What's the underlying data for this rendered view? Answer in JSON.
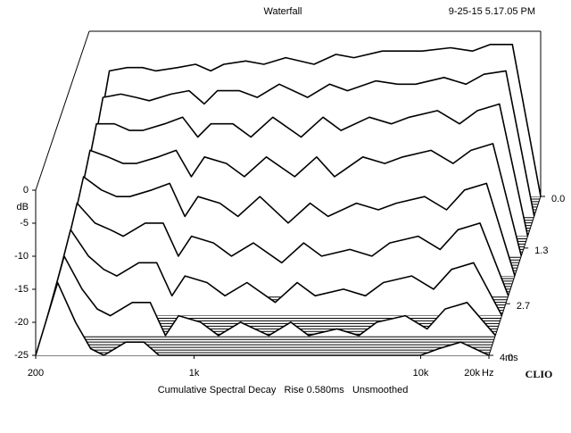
{
  "chart_data": {
    "type": "waterfall",
    "title": "Waterfall",
    "timestamp": "9-25-15 5.17.05 PM",
    "caption": "Cumulative Spectral Decay   Rise 0.580ms   Unsmoothed",
    "brand": "CLIO",
    "y_label": "dB",
    "x_unit": "Hz",
    "z_unit": "ms",
    "log_x": true,
    "x": [
      200,
      250,
      300,
      350,
      400,
      500,
      600,
      700,
      800,
      1000,
      1200,
      1500,
      2000,
      2500,
      3000,
      4000,
      5000,
      6000,
      8000,
      10000,
      12000,
      15000,
      20000
    ],
    "xlim": [
      200,
      20000
    ],
    "xticks": [
      {
        "value": 200,
        "label": "200"
      },
      {
        "value": 1000,
        "label": "1k"
      },
      {
        "value": 10000,
        "label": "10k"
      },
      {
        "value": 20000,
        "label": "20k"
      }
    ],
    "ylim": [
      -25,
      0
    ],
    "yticks": [
      0,
      -5,
      -10,
      -15,
      -20,
      -25
    ],
    "zlim": [
      0,
      4
    ],
    "zticks": [
      {
        "value": 0,
        "label": "0.0"
      },
      1.3,
      2.7,
      {
        "value": 4,
        "label": "4.0"
      }
    ],
    "color": "#000000",
    "slices": [
      {
        "time": 0,
        "values": [
          -25,
          -6,
          -5.5,
          -5.5,
          -6,
          -5.5,
          -5,
          -6,
          -5,
          -4.5,
          -5,
          -4,
          -5,
          -3.5,
          -4,
          -3,
          -3,
          -3,
          -2.5,
          -3,
          -2,
          -2,
          -25
        ]
      },
      {
        "time": 0.5,
        "values": [
          -25,
          -7,
          -6.5,
          -7,
          -7.5,
          -6.5,
          -6,
          -8,
          -6,
          -6,
          -7,
          -5,
          -7,
          -5,
          -6,
          -4.5,
          -5,
          -5,
          -4,
          -5,
          -3.5,
          -3,
          -25
        ]
      },
      {
        "time": 1,
        "values": [
          -25,
          -8,
          -8,
          -9,
          -9,
          -8,
          -7,
          -10,
          -8,
          -8,
          -10,
          -7,
          -10,
          -7,
          -9,
          -7,
          -8,
          -7,
          -6,
          -8,
          -6,
          -5,
          -25
        ]
      },
      {
        "time": 1.5,
        "values": [
          -25,
          -9,
          -10,
          -11,
          -11,
          -10,
          -9,
          -13,
          -10,
          -11,
          -13,
          -10,
          -13,
          -10,
          -13,
          -10,
          -11,
          -10,
          -9,
          -11,
          -9,
          -8,
          -25
        ]
      },
      {
        "time": 2,
        "values": [
          -25,
          -10,
          -12,
          -13,
          -13,
          -12,
          -11,
          -16,
          -13,
          -14,
          -16,
          -13,
          -17,
          -14,
          -16,
          -14,
          -15,
          -14,
          -13,
          -15,
          -12,
          -11,
          -25
        ]
      },
      {
        "time": 2.5,
        "values": [
          -25,
          -11,
          -14,
          -15,
          -16,
          -14,
          -14,
          -19,
          -16,
          -17,
          -19,
          -17,
          -20,
          -17,
          -19,
          -18,
          -19,
          -17,
          -16,
          -18,
          -15,
          -14,
          -25
        ]
      },
      {
        "time": 3,
        "values": [
          -25,
          -12,
          -16,
          -18,
          -19,
          -17,
          -17,
          -22,
          -19,
          -20,
          -22,
          -20,
          -23,
          -20,
          -22,
          -21,
          -22,
          -20,
          -19,
          -21,
          -18,
          -17,
          -25
        ]
      },
      {
        "time": 3.5,
        "values": [
          -25,
          -13,
          -18,
          -21,
          -22,
          -20,
          -20,
          -25,
          -22,
          -23,
          -25,
          -23,
          -25,
          -23,
          -25,
          -24,
          -25,
          -23,
          -22,
          -24,
          -21,
          -20,
          -25
        ]
      },
      {
        "time": 4,
        "values": [
          -25,
          -14,
          -20,
          -24,
          -25,
          -23,
          -23,
          -25,
          -25,
          -25,
          -25,
          -25,
          -25,
          -25,
          -25,
          -25,
          -25,
          -25,
          -25,
          -25,
          -24,
          -23,
          -25
        ]
      }
    ]
  }
}
